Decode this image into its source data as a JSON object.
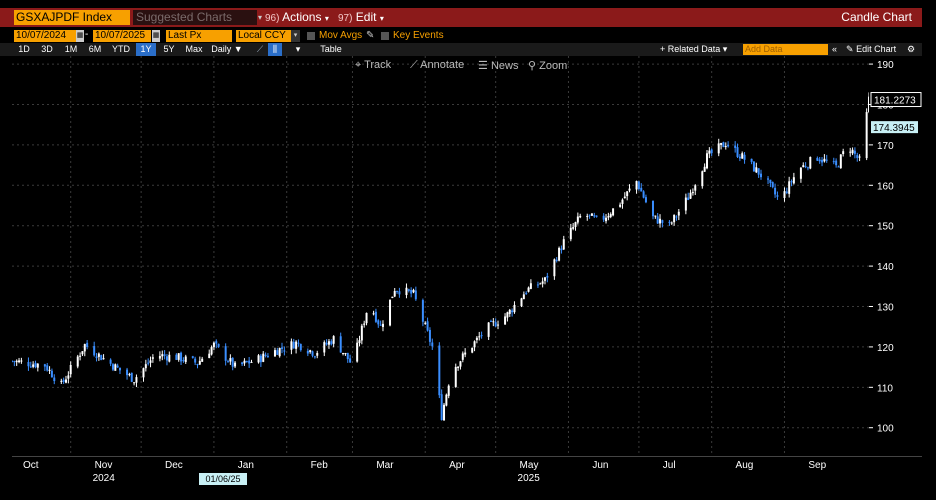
{
  "toolbar": {
    "ticker": "GSXAJPDF Index",
    "suggested_charts": "Suggested Charts",
    "actions_num": "96)",
    "actions_label": "Actions",
    "edit_num": "97)",
    "edit_label": "Edit",
    "chart_title": "Candle Chart"
  },
  "controls": {
    "start_date": "10/07/2024",
    "end_date": "10/07/2025",
    "field": "Last Px",
    "currency": "Local CCY",
    "mov_avgs": "Mov Avgs",
    "key_events": "Key Events"
  },
  "ranges": [
    "1D",
    "3D",
    "1M",
    "6M",
    "YTD",
    "1Y",
    "5Y",
    "Max"
  ],
  "selected_range": "1Y",
  "periodicity": "Daily",
  "table_label": "Table",
  "related_data": "+ Related Data",
  "add_data_placeholder": "Add Data",
  "edit_chart": "Edit Chart",
  "chart_tools": {
    "track": "Track",
    "annotate": "Annotate",
    "news": "News",
    "zoom": "Zoom"
  },
  "cursor_date": "01/06/25",
  "chart_data": {
    "type": "candlestick",
    "title": "",
    "x_start": "2024-10-07",
    "x_end": "2025-10-07",
    "months": [
      "Oct",
      "Nov",
      "Dec",
      "Jan",
      "Feb",
      "Mar",
      "Apr",
      "May",
      "Jun",
      "Jul",
      "Aug",
      "Sep"
    ],
    "years": [
      {
        "label": "2024",
        "month": "Nov"
      },
      {
        "label": "2025",
        "month": "May"
      }
    ],
    "ylim": [
      93,
      192
    ],
    "yticks": [
      100,
      110,
      120,
      130,
      140,
      150,
      160,
      170,
      180,
      190
    ],
    "last_value": "181.2273",
    "marker_value": "174.3945",
    "up_color": "#ffffff",
    "down_color": "#3a8eff",
    "grid": true,
    "close_series": [
      {
        "date": "2024-10-07",
        "close": 116.5
      },
      {
        "date": "2024-10-21",
        "close": 115.5
      },
      {
        "date": "2024-10-28",
        "close": 110.5
      },
      {
        "date": "2024-11-07",
        "close": 120.5
      },
      {
        "date": "2024-11-20",
        "close": 115
      },
      {
        "date": "2024-11-28",
        "close": 112
      },
      {
        "date": "2024-12-07",
        "close": 118
      },
      {
        "date": "2024-12-16",
        "close": 117.5
      },
      {
        "date": "2024-12-25",
        "close": 116
      },
      {
        "date": "2025-01-01",
        "close": 120.5
      },
      {
        "date": "2025-01-10",
        "close": 115
      },
      {
        "date": "2025-01-20",
        "close": 117
      },
      {
        "date": "2025-01-27",
        "close": 119
      },
      {
        "date": "2025-02-05",
        "close": 121
      },
      {
        "date": "2025-02-13",
        "close": 118.5
      },
      {
        "date": "2025-02-21",
        "close": 122
      },
      {
        "date": "2025-03-01",
        "close": 115.5
      },
      {
        "date": "2025-03-08",
        "close": 131
      },
      {
        "date": "2025-03-13",
        "close": 125
      },
      {
        "date": "2025-03-19",
        "close": 134.5
      },
      {
        "date": "2025-03-27",
        "close": 133
      },
      {
        "date": "2025-04-04",
        "close": 120
      },
      {
        "date": "2025-04-08",
        "close": 103
      },
      {
        "date": "2025-04-12",
        "close": 114
      },
      {
        "date": "2025-04-19",
        "close": 119
      },
      {
        "date": "2025-04-27",
        "close": 124.5
      },
      {
        "date": "2025-05-06",
        "close": 128
      },
      {
        "date": "2025-05-14",
        "close": 134
      },
      {
        "date": "2025-05-22",
        "close": 136.5
      },
      {
        "date": "2025-05-30",
        "close": 146
      },
      {
        "date": "2025-06-07",
        "close": 153
      },
      {
        "date": "2025-06-14",
        "close": 151
      },
      {
        "date": "2025-06-22",
        "close": 155
      },
      {
        "date": "2025-06-30",
        "close": 161
      },
      {
        "date": "2025-07-07",
        "close": 152
      },
      {
        "date": "2025-07-14",
        "close": 150
      },
      {
        "date": "2025-07-22",
        "close": 157
      },
      {
        "date": "2025-07-30",
        "close": 167
      },
      {
        "date": "2025-08-07",
        "close": 170.5
      },
      {
        "date": "2025-08-15",
        "close": 166.5
      },
      {
        "date": "2025-08-23",
        "close": 162
      },
      {
        "date": "2025-08-30",
        "close": 156
      },
      {
        "date": "2025-09-07",
        "close": 164
      },
      {
        "date": "2025-09-15",
        "close": 167
      },
      {
        "date": "2025-09-23",
        "close": 164.5
      },
      {
        "date": "2025-09-28",
        "close": 170
      },
      {
        "date": "2025-10-03",
        "close": 166
      },
      {
        "date": "2025-10-07",
        "close": 181.2273
      }
    ]
  }
}
